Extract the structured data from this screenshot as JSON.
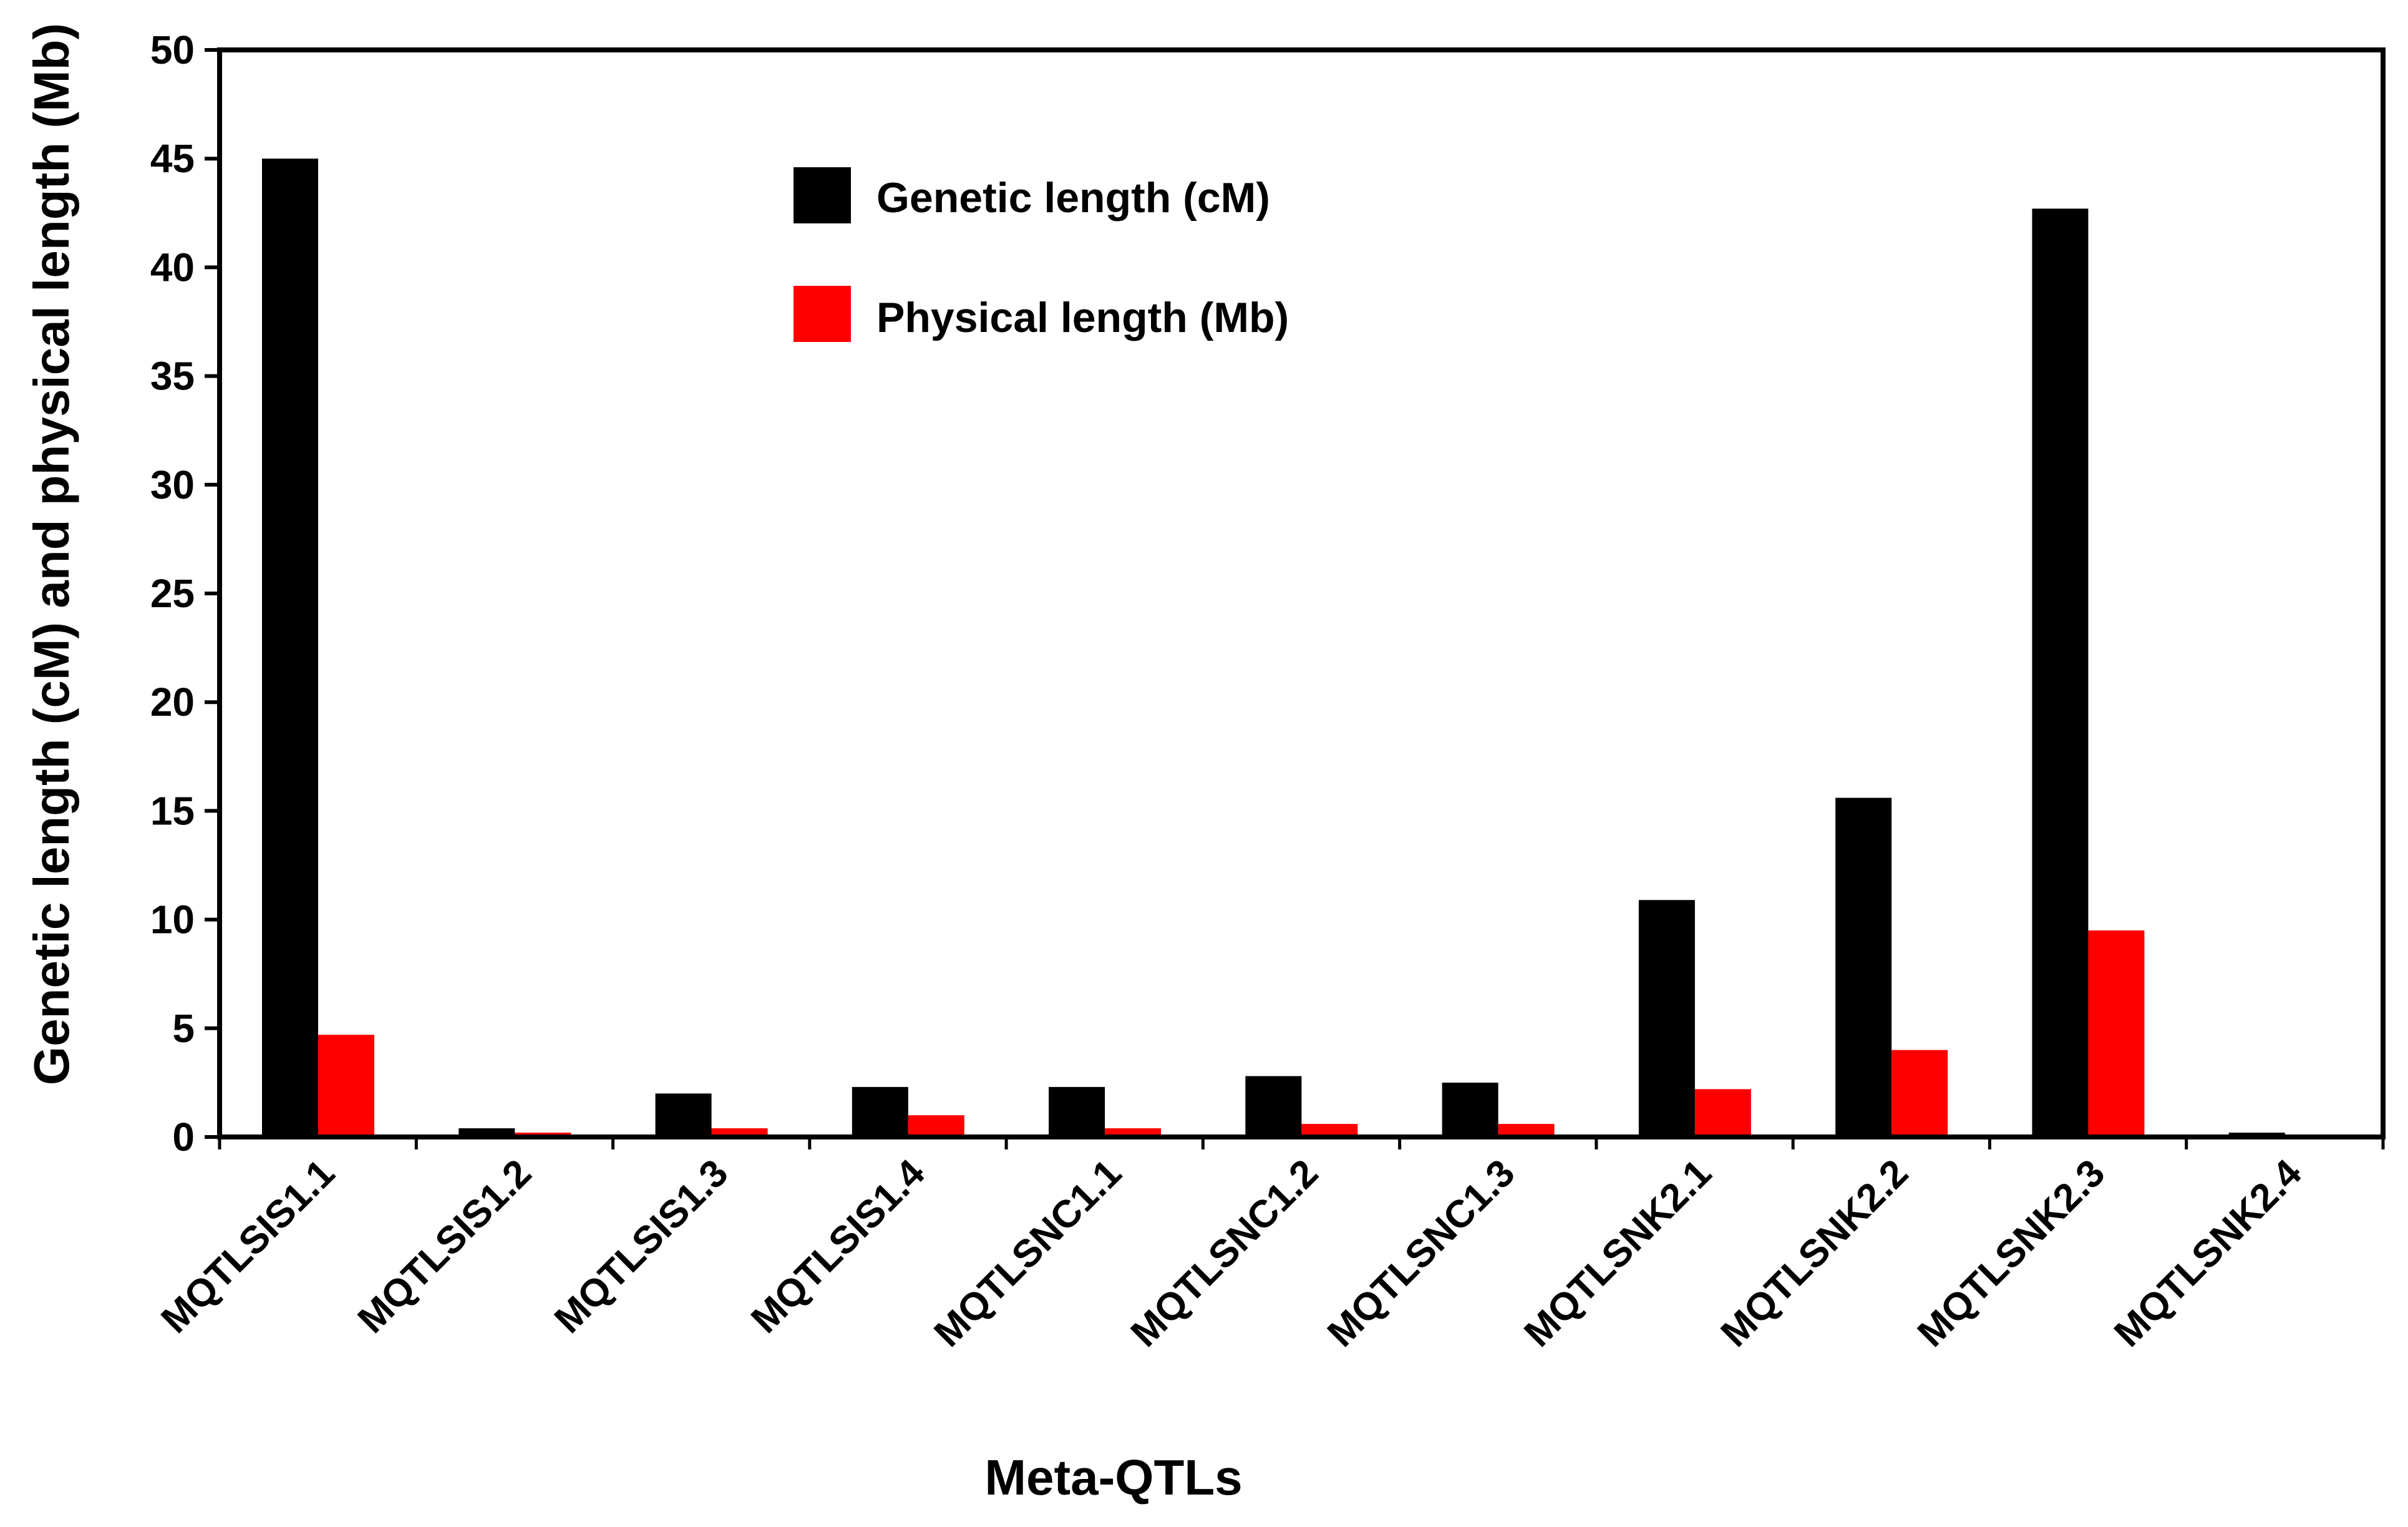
{
  "chart_data": {
    "type": "bar",
    "title": "",
    "xlabel": "Meta-QTLs",
    "ylabel": "Genetic length (cM) and physical length (Mb)",
    "ylim": [
      0,
      50
    ],
    "yticks": [
      0,
      5,
      10,
      15,
      20,
      25,
      30,
      35,
      40,
      45,
      50
    ],
    "grid": false,
    "legend_position": "top-center",
    "categories": [
      "MQTLSIS1.1",
      "MQTLSIS1.2",
      "MQTLSIS1.3",
      "MQTLSIS1.4",
      "MQTLSNC1.1",
      "MQTLSNC1.2",
      "MQTLSNC1.3",
      "MQTLSNK2.1",
      "MQTLSNK2.2",
      "MQTLSNK2.3",
      "MQTLSNK2.4"
    ],
    "series": [
      {
        "name": "Genetic length (cM)",
        "color": "#000000",
        "values": [
          45.0,
          0.4,
          2.0,
          2.3,
          2.3,
          2.8,
          2.5,
          10.9,
          15.6,
          42.7,
          0.2
        ]
      },
      {
        "name": "Physical length (Mb)",
        "color": "#ff0000",
        "values": [
          4.7,
          0.2,
          0.4,
          1.0,
          0.4,
          0.6,
          0.6,
          2.2,
          4.0,
          9.5,
          0.05
        ]
      }
    ]
  }
}
